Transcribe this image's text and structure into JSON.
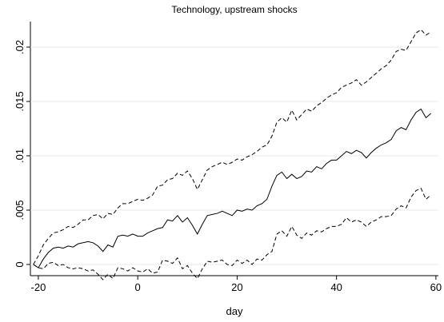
{
  "chart_data": {
    "type": "line",
    "title": "Technology, upstream shocks",
    "xlabel": "day",
    "x": [
      -21,
      -20,
      -19,
      -18,
      -17,
      -16,
      -15,
      -14,
      -13,
      -12,
      -11,
      -10,
      -9,
      -8,
      -7,
      -6,
      -5,
      -4,
      -3,
      -2,
      -1,
      0,
      1,
      2,
      3,
      4,
      5,
      6,
      7,
      8,
      9,
      10,
      11,
      12,
      13,
      14,
      15,
      16,
      17,
      18,
      19,
      20,
      21,
      22,
      23,
      24,
      25,
      26,
      27,
      28,
      29,
      30,
      31,
      32,
      33,
      34,
      35,
      36,
      37,
      38,
      39,
      40,
      41,
      42,
      43,
      44,
      45,
      46,
      47,
      48,
      49,
      50,
      51,
      52,
      53,
      54,
      55,
      56,
      57,
      58,
      59
    ],
    "series": [
      {
        "color": "#000000",
        "style": "solid",
        "values": [
          0,
          -0.0003,
          0.0005,
          0.0011,
          0.0015,
          0.0016,
          0.0015,
          0.0017,
          0.0016,
          0.0019,
          0.002,
          0.0021,
          0.002,
          0.0017,
          0.0012,
          0.0018,
          0.0016,
          0.0026,
          0.0027,
          0.0026,
          0.0028,
          0.0026,
          0.0026,
          0.0029,
          0.0031,
          0.0033,
          0.0034,
          0.0041,
          0.004,
          0.0045,
          0.0039,
          0.0043,
          0.0036,
          0.0028,
          0.0037,
          0.0045,
          0.0046,
          0.0047,
          0.0049,
          0.0047,
          0.0045,
          0.005,
          0.0049,
          0.0051,
          0.005,
          0.0054,
          0.0056,
          0.006,
          0.0072,
          0.0082,
          0.0085,
          0.0079,
          0.0083,
          0.0079,
          0.0081,
          0.0086,
          0.0085,
          0.009,
          0.0088,
          0.0093,
          0.0096,
          0.0096,
          0.01,
          0.0104,
          0.0102,
          0.0105,
          0.0103,
          0.0098,
          0.0103,
          0.0107,
          0.011,
          0.0112,
          0.0115,
          0.0123,
          0.0126,
          0.0124,
          0.0133,
          0.014,
          0.0143,
          0.0135,
          0.0139
        ]
      },
      {
        "color": "#000000",
        "style": "dashed",
        "values": [
          0,
          0.0008,
          0.0018,
          0.0024,
          0.0029,
          0.003,
          0.0032,
          0.0035,
          0.0034,
          0.0037,
          0.0041,
          0.0041,
          0.0045,
          0.0046,
          0.0042,
          0.0047,
          0.0046,
          0.0052,
          0.0056,
          0.0056,
          0.0058,
          0.006,
          0.0059,
          0.0061,
          0.0064,
          0.0072,
          0.0073,
          0.0078,
          0.0079,
          0.0084,
          0.0082,
          0.0086,
          0.0079,
          0.0069,
          0.0078,
          0.0087,
          0.009,
          0.0092,
          0.0094,
          0.0092,
          0.0094,
          0.0097,
          0.0096,
          0.0099,
          0.0101,
          0.0104,
          0.0108,
          0.011,
          0.0118,
          0.0131,
          0.0135,
          0.0131,
          0.0142,
          0.0133,
          0.0138,
          0.0143,
          0.0141,
          0.0146,
          0.0149,
          0.0153,
          0.0156,
          0.0158,
          0.0163,
          0.0165,
          0.0167,
          0.017,
          0.0165,
          0.0168,
          0.0172,
          0.0176,
          0.018,
          0.0183,
          0.0188,
          0.0196,
          0.0198,
          0.0197,
          0.0205,
          0.0213,
          0.0216,
          0.0211,
          0.0214
        ]
      },
      {
        "color": "#000000",
        "style": "dashed",
        "values": [
          0,
          -0.0003,
          -0.0004,
          0.0001,
          0.0002,
          -0.0001,
          0,
          -0.0003,
          -0.0004,
          -0.0003,
          -0.0004,
          -0.0006,
          -0.0005,
          -0.0009,
          -0.0014,
          -0.0009,
          -0.0013,
          -0.0003,
          -0.0004,
          -0.0006,
          -0.0003,
          -0.0006,
          -0.0007,
          -0.0004,
          -0.0008,
          -0.0007,
          0.0004,
          0.0003,
          0.0001,
          0.0006,
          -0.0004,
          -0.0001,
          -0.0008,
          -0.0013,
          -0.0004,
          0.0003,
          0.0002,
          0.0003,
          0.0004,
          0,
          -0.0001,
          0.0004,
          0.0001,
          0.0004,
          0,
          0.0005,
          0.0004,
          0.0009,
          0.0012,
          0.0028,
          0.0031,
          0.0026,
          0.0035,
          0.0027,
          0.0024,
          0.0029,
          0.0027,
          0.0031,
          0.003,
          0.0033,
          0.0035,
          0.0035,
          0.0037,
          0.0043,
          0.0039,
          0.0041,
          0.0039,
          0.0035,
          0.0039,
          0.0041,
          0.0044,
          0.0044,
          0.0045,
          0.0051,
          0.0054,
          0.0052,
          0.0062,
          0.0068,
          0.007,
          0.006,
          0.0064
        ]
      }
    ],
    "xlim": [
      -21.6,
      60.5
    ],
    "xticks": [
      -20,
      0,
      20,
      40,
      60
    ],
    "ylim": [
      -0.00103,
      0.02235
    ],
    "yticks": [
      0,
      {
        "value": 0.005,
        "label": ".005"
      },
      {
        "value": 0.01,
        "label": ".01"
      },
      {
        "value": 0.015,
        "label": ".015"
      },
      {
        "value": 0.02,
        "label": ".02"
      }
    ],
    "grid": true
  }
}
